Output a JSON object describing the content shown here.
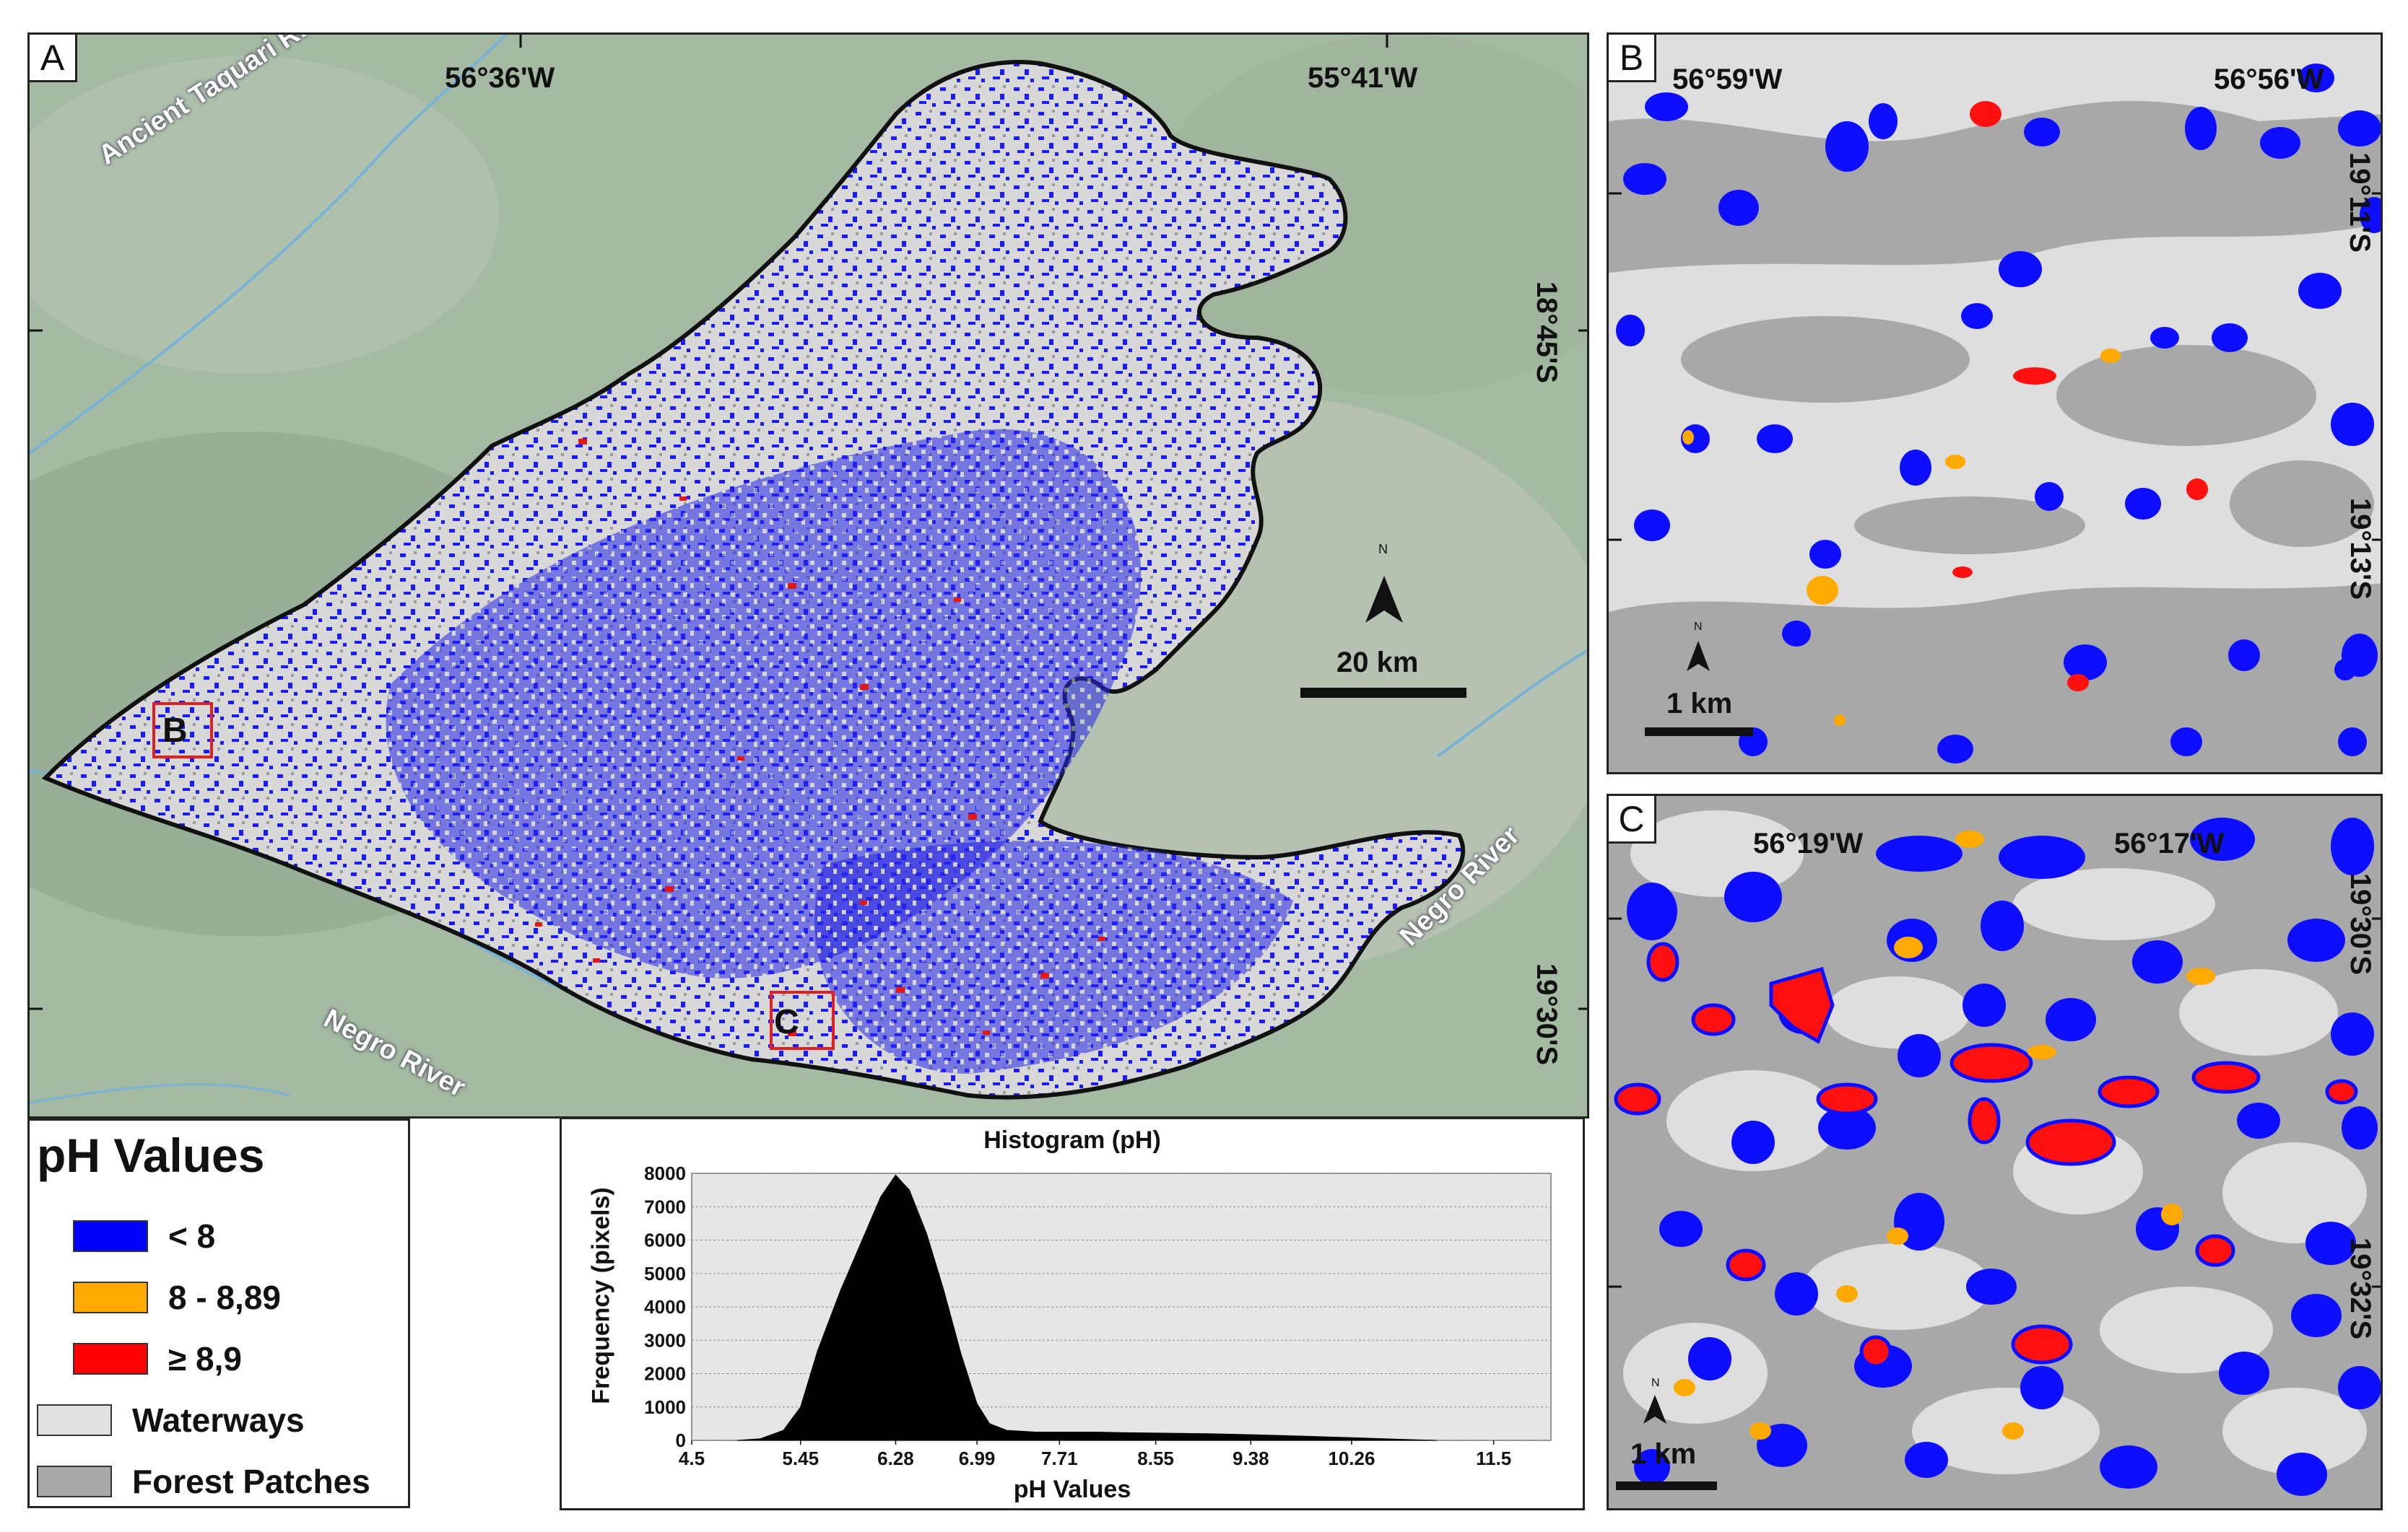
{
  "panels": {
    "a": {
      "label": "A",
      "coords": {
        "top_left": "56°36'W",
        "top_right": "55°41'W",
        "right_upper": "18°45'S",
        "right_lower": "19°30'S"
      },
      "rivers": {
        "taquari": "Ancient Taquari River",
        "negro_left": "Negro River",
        "negro_right": "Negro River"
      },
      "boxes": {
        "b": "B",
        "c": "C"
      },
      "scale": "20 km",
      "north": "N"
    },
    "b": {
      "label": "B",
      "coords": {
        "top_left": "56°59'W",
        "top_right": "56°56'W",
        "right_upper": "19°11'S",
        "right_lower": "19°13'S"
      },
      "scale": "1 km",
      "north": "N"
    },
    "c": {
      "label": "C",
      "coords": {
        "top_left": "56°19'W",
        "top_right": "56°17'W",
        "right_upper": "19°30'S",
        "right_lower": "19°32'S"
      },
      "scale": "1 km",
      "north": "N"
    }
  },
  "legend": {
    "title": "pH Values",
    "items": [
      {
        "label": "< 8",
        "color": "#0000ff"
      },
      {
        "label": "8 - 8,89",
        "color": "#ffaa00"
      },
      {
        "label": "≥ 8,9",
        "color": "#ff0000"
      },
      {
        "label": "Waterways",
        "color": "#e1e1e1"
      },
      {
        "label": "Forest Patches",
        "color": "#a8a8a8"
      }
    ]
  },
  "chart_data": {
    "type": "bar",
    "title": "Histogram (pH)",
    "xlabel": "pH Values",
    "ylabel": "Frequency (pixels)",
    "x_ticks": [
      "4.5",
      "5.45",
      "6.28",
      "6.99",
      "7.71",
      "8.55",
      "9.38",
      "10.26",
      "11.5"
    ],
    "y_ticks": [
      "0",
      "1000",
      "2000",
      "3000",
      "4000",
      "5000",
      "6000",
      "7000",
      "8000"
    ],
    "xlim": [
      4.5,
      12.0
    ],
    "ylim": [
      0,
      8000
    ],
    "grid": true,
    "x": [
      4.9,
      5.1,
      5.3,
      5.45,
      5.6,
      5.8,
      6.0,
      6.15,
      6.28,
      6.4,
      6.55,
      6.7,
      6.85,
      6.99,
      7.1,
      7.25,
      7.5,
      7.71,
      8.0,
      8.3,
      8.55,
      9.0,
      9.38,
      9.8,
      10.26,
      10.7,
      11.0
    ],
    "values": [
      0,
      50,
      300,
      1000,
      2700,
      4500,
      6100,
      7300,
      7950,
      7500,
      6200,
      4500,
      2600,
      1100,
      500,
      300,
      250,
      250,
      250,
      230,
      220,
      200,
      170,
      130,
      80,
      30,
      0
    ]
  }
}
